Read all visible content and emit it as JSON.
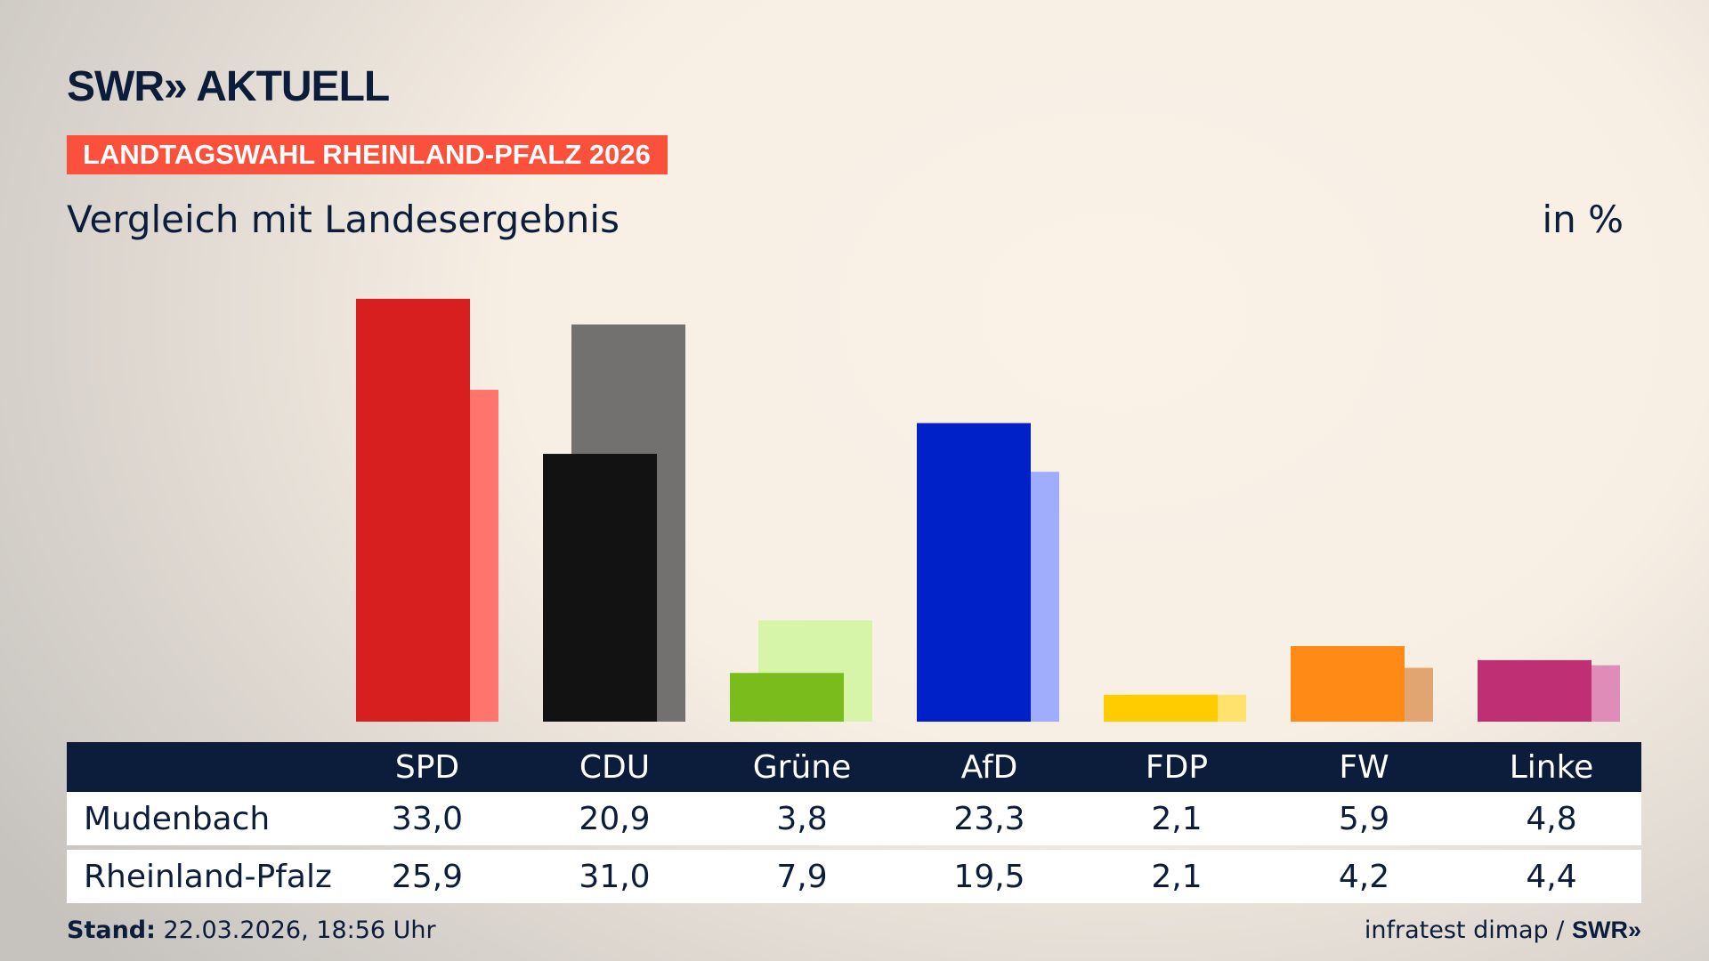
{
  "header": {
    "logo": "SWR» AKTUELL",
    "banner": "LANDTAGSWAHL RHEINLAND-PFALZ 2026",
    "subtitle": "Vergleich mit Landesergebnis",
    "unit": "in %"
  },
  "colors": {
    "banner": "#fb503b",
    "navy": "#0c1d3b"
  },
  "chart_data": {
    "type": "bar",
    "categories": [
      "SPD",
      "CDU",
      "Grüne",
      "AfD",
      "FDP",
      "FW",
      "Linke"
    ],
    "series": [
      {
        "name": "Mudenbach",
        "values": [
          33.0,
          20.9,
          3.8,
          23.3,
          2.1,
          5.9,
          4.8
        ],
        "colors": [
          "#d71f1f",
          "#121212",
          "#79bc1c",
          "#0020c8",
          "#ffcc00",
          "#ff8a16",
          "#bf2f73"
        ]
      },
      {
        "name": "Rheinland-Pfalz",
        "values": [
          25.9,
          31.0,
          7.9,
          19.5,
          2.1,
          4.2,
          4.4
        ],
        "colors": [
          "#ff746c",
          "#737170",
          "#d6f5a8",
          "#a0acfc",
          "#ffe26d",
          "#e0a570",
          "#e08cb9"
        ]
      }
    ],
    "ylim": [
      0,
      35
    ],
    "grid": false
  },
  "table": {
    "headers": [
      "SPD",
      "CDU",
      "Grüne",
      "AfD",
      "FDP",
      "FW",
      "Linke"
    ],
    "rows": [
      {
        "label": "Mudenbach",
        "values": [
          "33,0",
          "20,9",
          "3,8",
          "23,3",
          "2,1",
          "5,9",
          "4,8"
        ]
      },
      {
        "label": "Rheinland-Pfalz",
        "values": [
          "25,9",
          "31,0",
          "7,9",
          "19,5",
          "2,1",
          "4,2",
          "4,4"
        ]
      }
    ]
  },
  "footer": {
    "stand_label": "Stand:",
    "stand_value": "22.03.2026, 18:56 Uhr",
    "source": "infratest dimap /",
    "source_logo": "SWR»"
  }
}
